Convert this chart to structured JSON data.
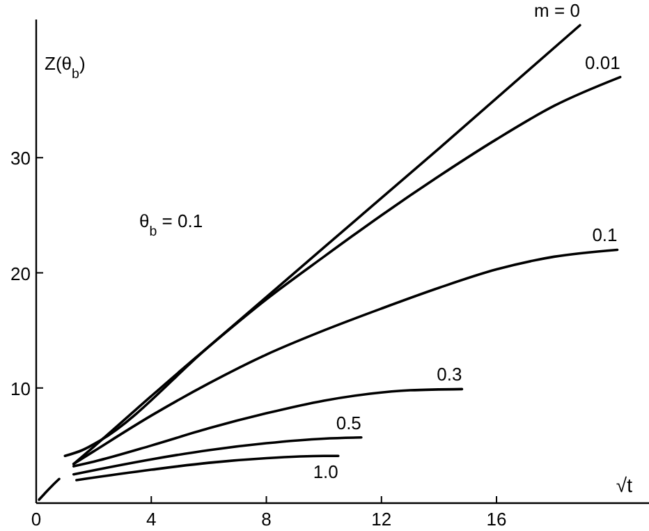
{
  "chart_data": {
    "type": "line",
    "xlabel": "√t",
    "ylabel": "Z(θ$_{b}$)",
    "annotations": [
      {
        "text": "θ$_{b}$ = 0.1"
      }
    ],
    "xlim": [
      0,
      21.3
    ],
    "xticks": [
      0,
      4,
      8,
      12,
      16
    ],
    "ylim": [
      0,
      42
    ],
    "yticks": [
      10,
      20,
      30
    ],
    "grid": false,
    "marker": "none",
    "line_style": "solid",
    "series": [
      {
        "name": "m = 0",
        "color": "#000000",
        "x": [
          1.0,
          1.6,
          2.2,
          6,
          10,
          14,
          18.9
        ],
        "values": [
          4.1,
          4.6,
          5.4,
          13.6,
          22.2,
          30.8,
          41.5
        ]
      },
      {
        "name": "0.01",
        "color": "#000000",
        "x": [
          1.3,
          2,
          4,
          6,
          8,
          10,
          12,
          14,
          16,
          18,
          20.3
        ],
        "values": [
          3.4,
          4.9,
          9.3,
          13.6,
          17.7,
          21.4,
          25.0,
          28.4,
          31.6,
          34.5,
          37.0
        ]
      },
      {
        "name": "0.1",
        "color": "#000000",
        "x": [
          1.3,
          2,
          4,
          6,
          8,
          10,
          12,
          14,
          16,
          18,
          20.2
        ],
        "values": [
          3.4,
          4.5,
          7.6,
          10.4,
          12.9,
          15.0,
          16.9,
          18.7,
          20.3,
          21.4,
          22.0
        ]
      },
      {
        "name": "0.3",
        "color": "#000000",
        "x": [
          1.3,
          2,
          4,
          6,
          8,
          10,
          11.6,
          13,
          14.8
        ],
        "values": [
          3.2,
          3.6,
          5.0,
          6.5,
          7.8,
          8.9,
          9.5,
          9.8,
          9.9
        ]
      },
      {
        "name": "0.5",
        "color": "#000000",
        "x": [
          1.3,
          4,
          6,
          8,
          10,
          11.3
        ],
        "values": [
          2.5,
          3.8,
          4.6,
          5.2,
          5.6,
          5.7
        ]
      },
      {
        "name": "1.0",
        "color": "#000000",
        "x": [
          1.4,
          4,
          6,
          8,
          10,
          10.5
        ],
        "values": [
          2.0,
          2.9,
          3.5,
          3.9,
          4.1,
          4.1
        ]
      },
      {
        "color": "#000000",
        "x": [
          0.1,
          0.3,
          0.55,
          0.8
        ],
        "values": [
          0.3,
          0.85,
          1.5,
          2.1
        ]
      }
    ]
  }
}
